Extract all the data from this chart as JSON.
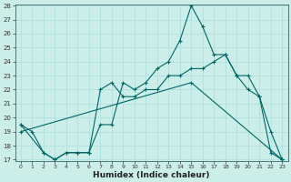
{
  "xlabel": "Humidex (Indice chaleur)",
  "background_color": "#cceee8",
  "line_color": "#006666",
  "grid_color": "#aadddd",
  "ylim": [
    17,
    28
  ],
  "xlim": [
    -0.5,
    23.5
  ],
  "yticks": [
    17,
    18,
    19,
    20,
    21,
    22,
    23,
    24,
    25,
    26,
    27,
    28
  ],
  "xticks": [
    0,
    1,
    2,
    3,
    4,
    5,
    6,
    7,
    8,
    9,
    10,
    11,
    12,
    13,
    14,
    15,
    16,
    17,
    18,
    19,
    20,
    21,
    22,
    23
  ],
  "line1_x": [
    0,
    1,
    2,
    3,
    4,
    5,
    6,
    7,
    8,
    9,
    10,
    11,
    12,
    13,
    14,
    15,
    16,
    17,
    18,
    19,
    20,
    21,
    22,
    23
  ],
  "line1_y": [
    19.5,
    19.0,
    17.5,
    17.0,
    17.5,
    17.5,
    17.5,
    19.5,
    19.5,
    22.5,
    22.0,
    22.5,
    23.5,
    24.0,
    25.5,
    28.0,
    26.5,
    24.5,
    24.5,
    23.0,
    22.0,
    21.5,
    19.0,
    17.0
  ],
  "line2_x": [
    0,
    2,
    3,
    4,
    5,
    6,
    7,
    8,
    9,
    10,
    11,
    12,
    13,
    14,
    15,
    16,
    17,
    18,
    19,
    20,
    21,
    22,
    23
  ],
  "line2_y": [
    19.5,
    17.5,
    17.0,
    17.5,
    17.5,
    17.5,
    22.0,
    22.5,
    21.5,
    21.5,
    22.0,
    22.0,
    23.0,
    23.0,
    23.5,
    23.5,
    24.0,
    24.5,
    23.0,
    23.0,
    21.5,
    17.5,
    17.0
  ],
  "line3_x": [
    0,
    15,
    23
  ],
  "line3_y": [
    19.0,
    22.5,
    17.0
  ]
}
